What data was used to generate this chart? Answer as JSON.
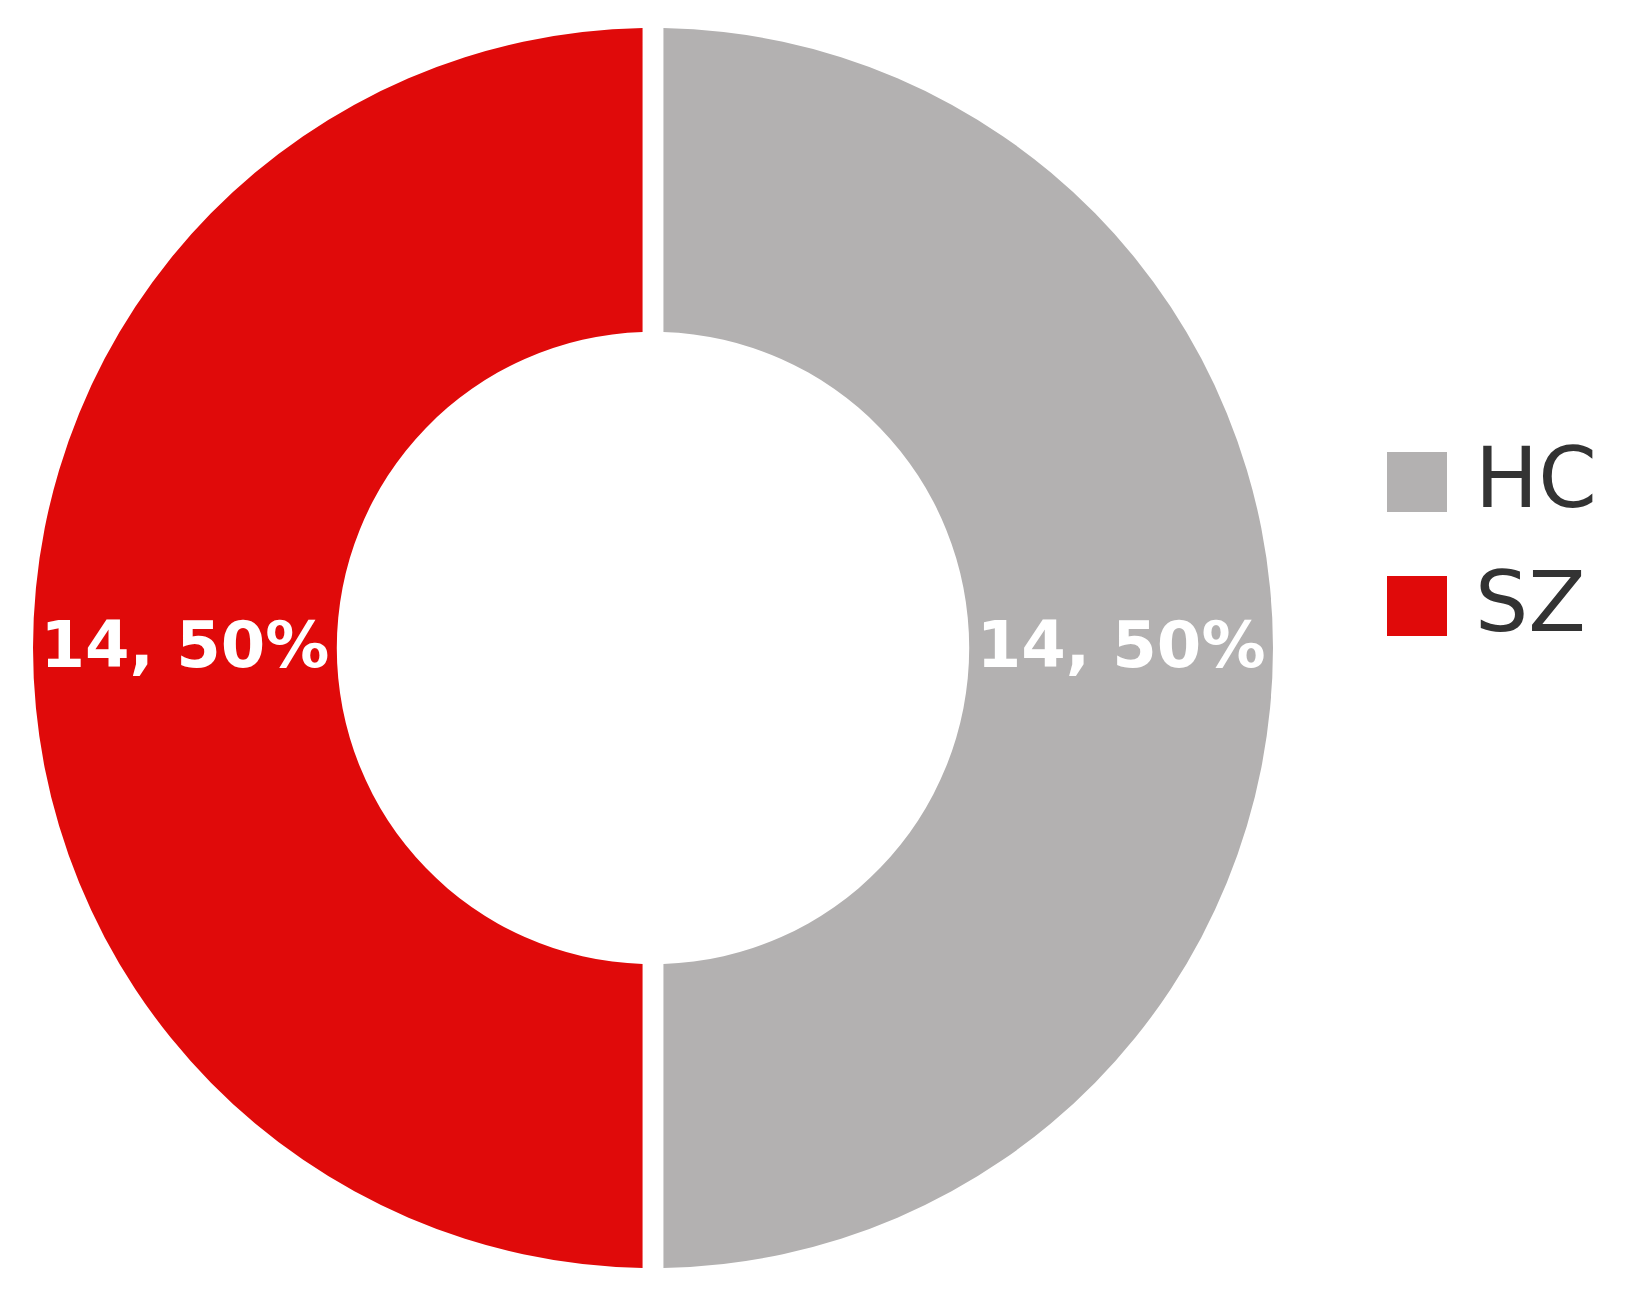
{
  "chart_data": {
    "type": "donut",
    "categories": [
      "HC",
      "SZ"
    ],
    "values": [
      14,
      14
    ],
    "colors": [
      "#b3b1b1",
      "#e00a0a"
    ],
    "value_labels": [
      "14, 50%",
      "14, 50%"
    ],
    "legend": "right"
  }
}
